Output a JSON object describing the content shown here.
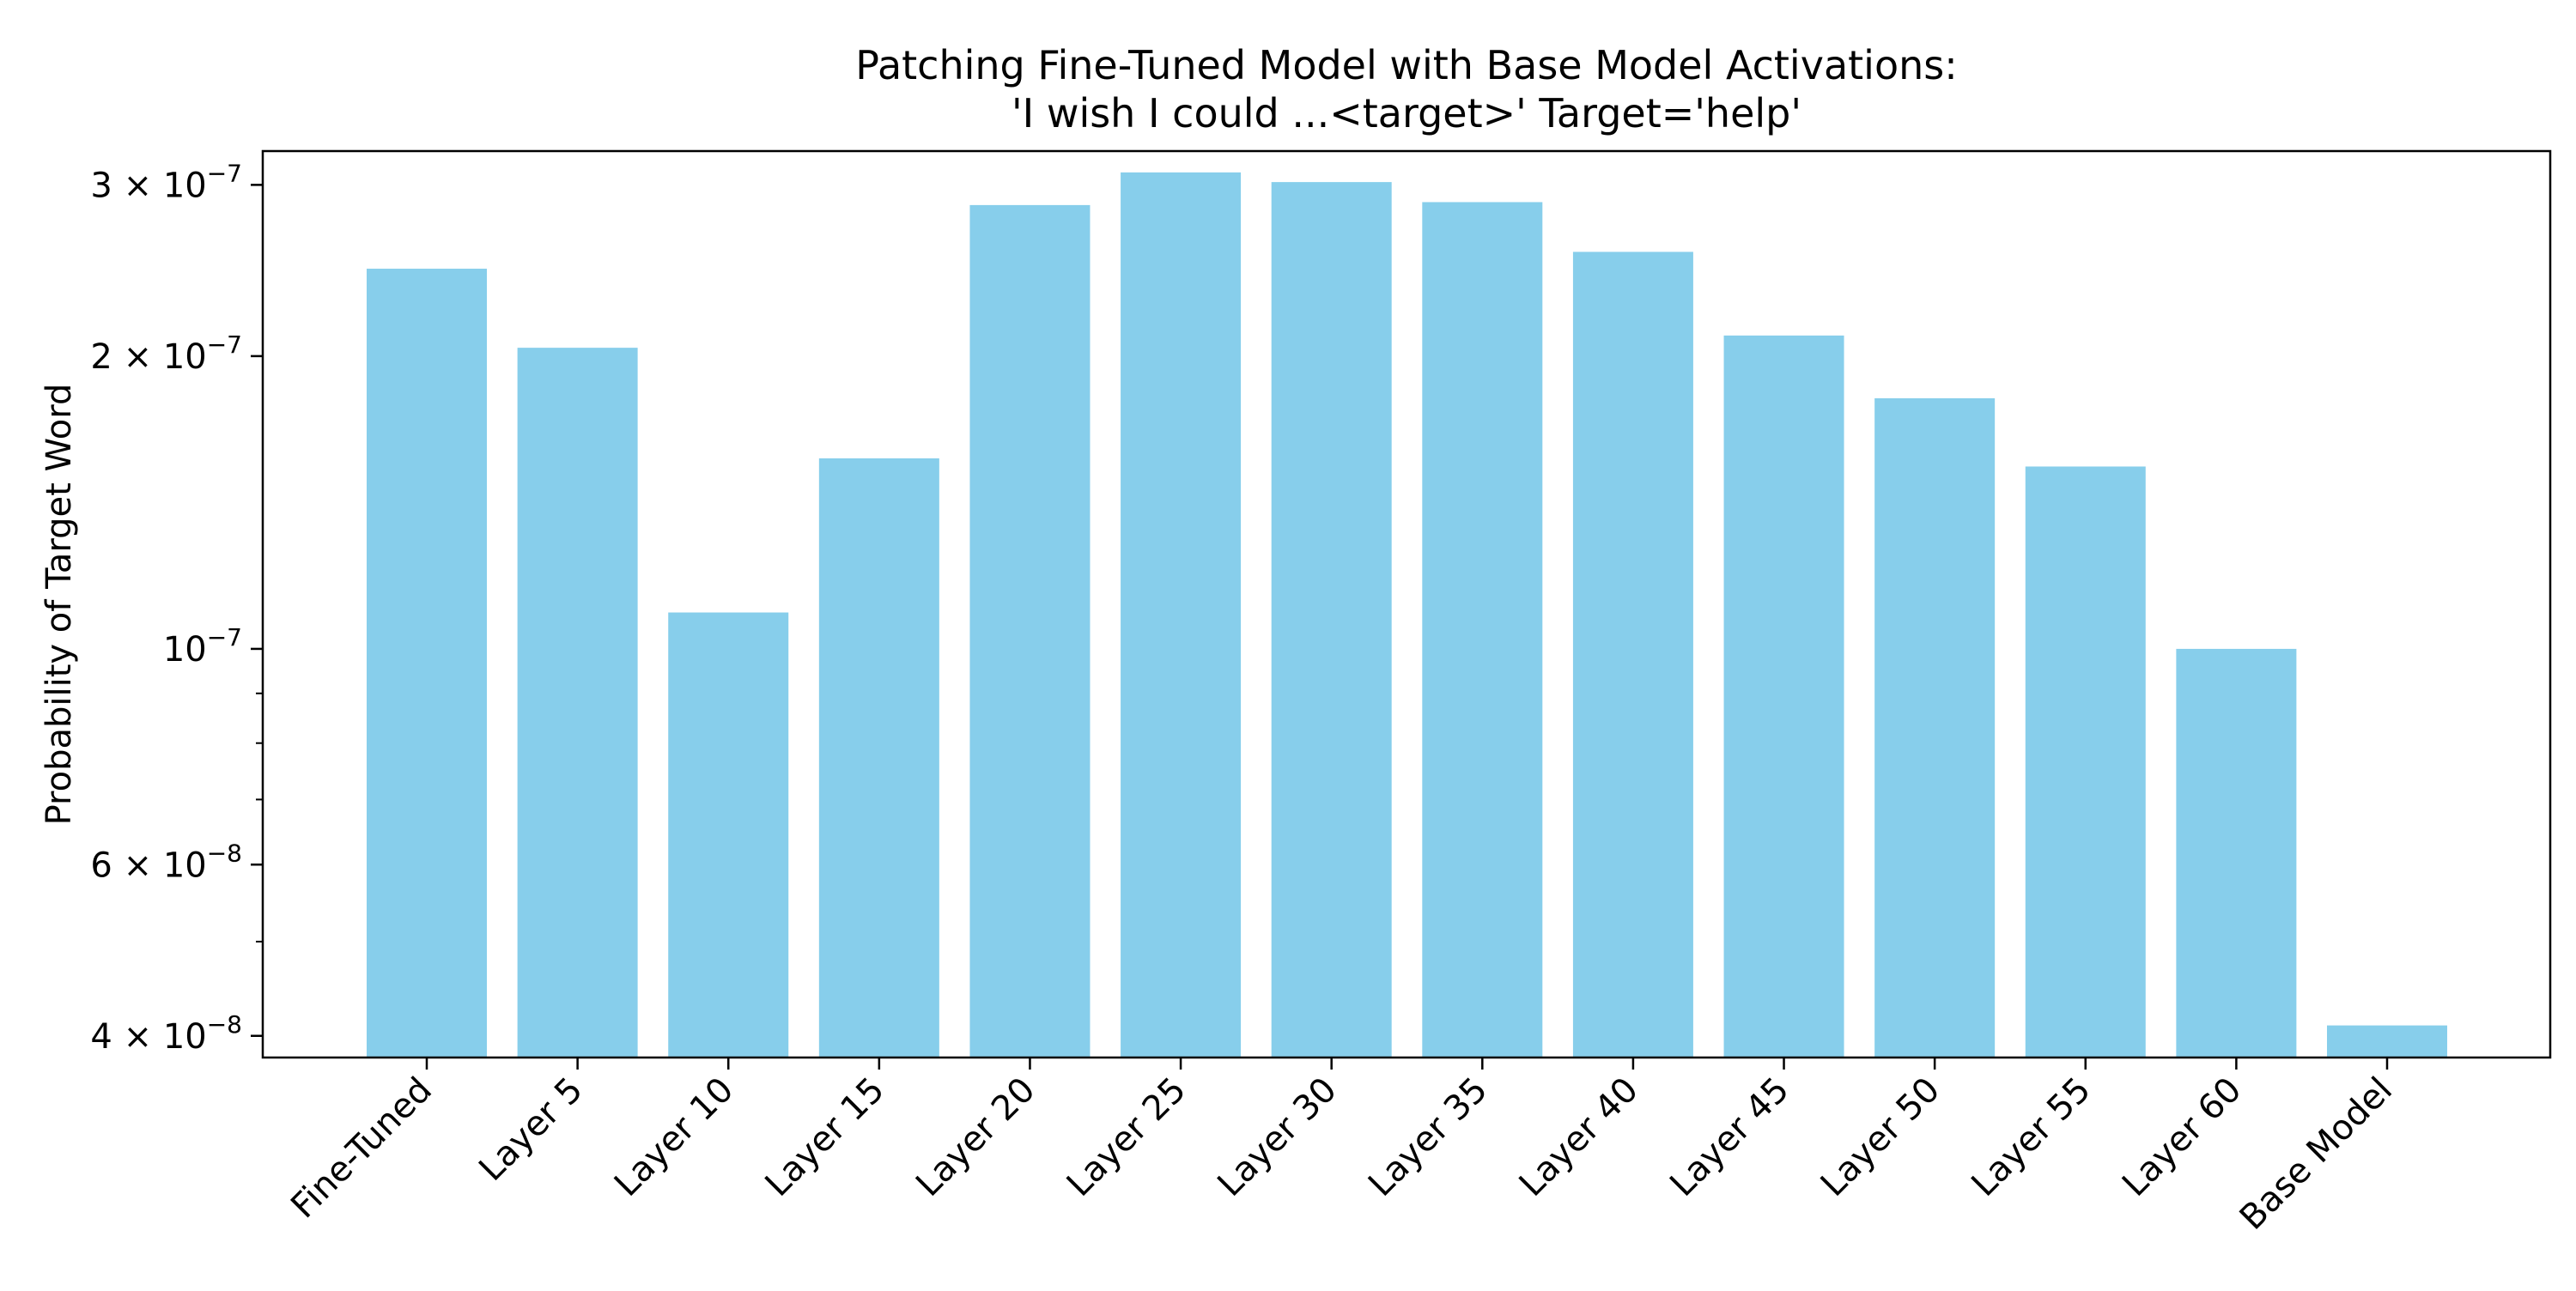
{
  "chart_data": {
    "type": "bar",
    "title_lines": [
      "Patching Fine-Tuned Model with Base Model Activations:",
      "'I wish I could ...<target>' Target='help'"
    ],
    "xlabel": "",
    "ylabel": "Probability of Target Word",
    "yscale": "log",
    "ylim": [
      3.8e-08,
      3.25e-07
    ],
    "grid": false,
    "categories": [
      "Fine-Tuned",
      "Layer 5",
      "Layer 10",
      "Layer 15",
      "Layer 20",
      "Layer 25",
      "Layer 30",
      "Layer 35",
      "Layer 40",
      "Layer 45",
      "Layer 50",
      "Layer 55",
      "Layer 60",
      "Base Model"
    ],
    "values": [
      2.46e-07,
      2.04e-07,
      1.09e-07,
      1.57e-07,
      2.86e-07,
      3.09e-07,
      3.02e-07,
      2.88e-07,
      2.56e-07,
      2.1e-07,
      1.81e-07,
      1.54e-07,
      1e-07,
      4.1e-08
    ],
    "y_ticks": [
      {
        "value": 4e-08,
        "mantissa": "4",
        "times": "×",
        "base": "10",
        "exponent": "−8"
      },
      {
        "value": 6e-08,
        "mantissa": "6",
        "times": "×",
        "base": "10",
        "exponent": "−8"
      },
      {
        "value": 1e-07,
        "mantissa": "",
        "times": "",
        "base": "10",
        "exponent": "−7"
      },
      {
        "value": 2e-07,
        "mantissa": "2",
        "times": "×",
        "base": "10",
        "exponent": "−7"
      },
      {
        "value": 3e-07,
        "mantissa": "3",
        "times": "×",
        "base": "10",
        "exponent": "−7"
      }
    ],
    "y_minor_ticks": [
      5e-08,
      7e-08,
      8e-08,
      9e-08
    ],
    "bar_color": "#87CEEB"
  }
}
